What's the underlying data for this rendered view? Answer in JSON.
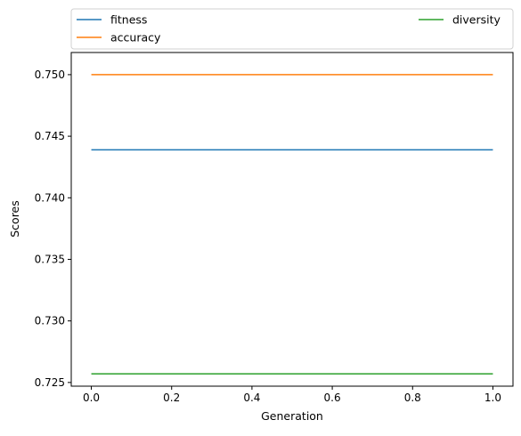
{
  "chart_data": {
    "type": "line",
    "xlabel": "Generation",
    "ylabel": "Scores",
    "xlim": [
      -0.05,
      1.05
    ],
    "ylim": [
      0.7247,
      0.7518
    ],
    "x_ticks": [
      0.0,
      0.2,
      0.4,
      0.6,
      0.8,
      1.0
    ],
    "x_tick_labels": [
      "0.0",
      "0.2",
      "0.4",
      "0.6",
      "0.8",
      "1.0"
    ],
    "y_ticks": [
      0.725,
      0.73,
      0.735,
      0.74,
      0.745,
      0.75
    ],
    "y_tick_labels": [
      "0.725",
      "0.730",
      "0.735",
      "0.740",
      "0.745",
      "0.750"
    ],
    "grid": false,
    "legend_position": "above plot, two columns",
    "series": [
      {
        "name": "fitness",
        "color": "#1f77b4",
        "x": [
          0.0,
          1.0
        ],
        "y": [
          0.7439,
          0.7439
        ]
      },
      {
        "name": "accuracy",
        "color": "#ff7f0e",
        "x": [
          0.0,
          1.0
        ],
        "y": [
          0.75,
          0.75
        ]
      },
      {
        "name": "diversity",
        "color": "#2ca02c",
        "x": [
          0.0,
          1.0
        ],
        "y": [
          0.7257,
          0.7257
        ]
      }
    ]
  }
}
